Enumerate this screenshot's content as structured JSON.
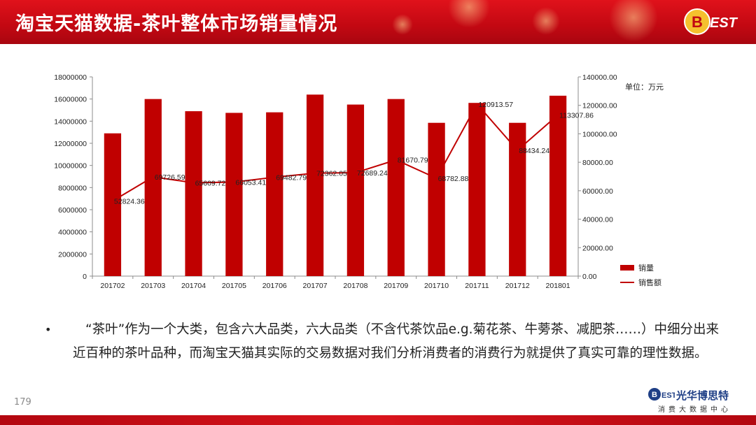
{
  "header": {
    "title": "淘宝天猫数据-茶叶整体市场销量情况"
  },
  "logo": {
    "top_text": "BEST"
  },
  "chart_data": {
    "type": "bar+line",
    "categories": [
      "201702",
      "201703",
      "201704",
      "201705",
      "201706",
      "201707",
      "201708",
      "201709",
      "201710",
      "201711",
      "201712",
      "201801"
    ],
    "series": [
      {
        "name": "销量",
        "type": "bar",
        "axis": "left",
        "color": "#c00000",
        "values": [
          12900000,
          16000000,
          14900000,
          14750000,
          14800000,
          16400000,
          15500000,
          16000000,
          13850000,
          15650000,
          13850000,
          16300000
        ]
      },
      {
        "name": "销售额",
        "type": "line",
        "axis": "right",
        "color": "#c00000",
        "values": [
          52824.36,
          69726.59,
          65609.72,
          66053.41,
          69482.79,
          72362.05,
          72689.24,
          81670.79,
          68782.88,
          120913.57,
          88434.24,
          113307.86
        ],
        "labels": [
          "52824.36",
          "69726.59",
          "65609.72",
          "66053.41",
          "69482.79",
          "72362.05",
          "72689.24",
          "81670.79",
          "68782.88",
          "120913.57",
          "88434.24",
          "113307.86"
        ]
      }
    ],
    "y_left": {
      "min": 0,
      "max": 18000000,
      "ticks": [
        "0",
        "2000000",
        "4000000",
        "6000000",
        "8000000",
        "10000000",
        "12000000",
        "14000000",
        "16000000",
        "18000000"
      ]
    },
    "y_right": {
      "min": 0,
      "max": 140000,
      "ticks": [
        "0.00",
        "20000.00",
        "40000.00",
        "60000.00",
        "80000.00",
        "100000.00",
        "120000.00",
        "140000.00"
      ]
    },
    "unit_note": "单位：万元",
    "legend": {
      "position": "right",
      "bar_label": "销量",
      "line_label": "销售额"
    },
    "grid": false
  },
  "body": {
    "bullet": "•",
    "text": "“茶叶”作为一个大类，包含六大品类，六大品类（不含代茶饮品e.g.菊花茶、牛蒡茶、减肥茶……）中细分出来近百种的茶叶品种，而淘宝天猫其实际的交易数据对我们分析消费者的消费行为就提供了真实可靠的理性数据。"
  },
  "page_number": "179",
  "brand": {
    "name": "光华博思特",
    "mark": "BEST",
    "subtitle": "消费大数据中心"
  }
}
